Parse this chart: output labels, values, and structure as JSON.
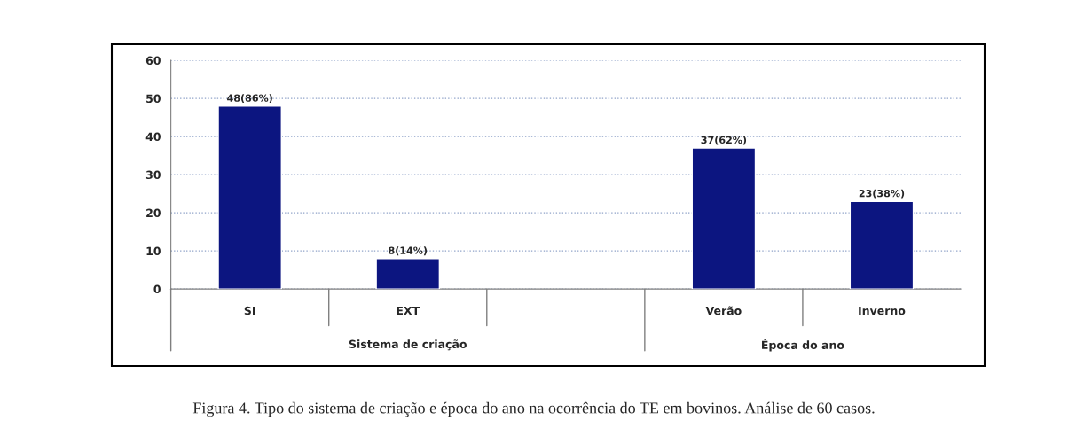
{
  "chart_data": {
    "type": "bar",
    "categories": [
      "SI",
      "EXT",
      null,
      "Verão",
      "Inverno"
    ],
    "values": [
      48,
      8,
      null,
      37,
      23
    ],
    "value_labels": [
      "48(86%)",
      "8(14%)",
      null,
      "37(62%)",
      "23(38%)"
    ],
    "color": "#0c1580",
    "ylim": [
      0,
      60
    ],
    "yticks": [
      0,
      10,
      20,
      30,
      40,
      50,
      60
    ],
    "grid": "y",
    "legend": false,
    "annotations": [
      "Sistema de criação",
      "Época do ano",
      "Figura 4. Tipo do sistema de criação e época do ano na ocorrência do TE em bovinos. Análise de 60 casos."
    ]
  }
}
